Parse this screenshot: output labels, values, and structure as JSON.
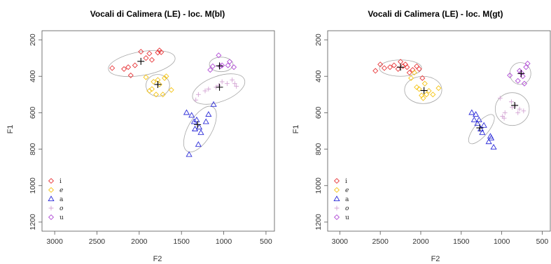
{
  "chart_data": [
    {
      "type": "scatter",
      "title": "Vocali di Calimera (LE) - loc. M(bl)",
      "xlabel": "F2",
      "ylabel": "F1",
      "xlim": [
        3150,
        400
      ],
      "ylim": [
        1250,
        150
      ],
      "x_reversed": true,
      "y_reversed": true,
      "xticks": [
        3000,
        2500,
        2000,
        1500,
        1000,
        500
      ],
      "yticks": [
        200,
        400,
        600,
        800,
        1000,
        1200
      ],
      "legend": {
        "position": "bottom-left",
        "entries": [
          "i",
          "e",
          "a",
          "o",
          "u"
        ]
      },
      "series": [
        {
          "name": "i",
          "marker": "diamond",
          "color": "#e8383b",
          "points": [
            [
              2320,
              355
            ],
            [
              2180,
              360
            ],
            [
              2130,
              350
            ],
            [
              2100,
              395
            ],
            [
              2050,
              340
            ],
            [
              1980,
              265
            ],
            [
              1920,
              300
            ],
            [
              1880,
              275
            ],
            [
              1850,
              310
            ],
            [
              1780,
              270
            ],
            [
              1760,
              258
            ],
            [
              1740,
              268
            ]
          ],
          "mean": [
            1980,
            318
          ],
          "ellipse": {
            "center": [
              1970,
              330
            ],
            "width_f2": 800,
            "height_f1": 130,
            "angle_deg": -10
          }
        },
        {
          "name": "e",
          "marker": "diamond",
          "color": "#f5c518",
          "points": [
            [
              1920,
              405
            ],
            [
              1880,
              480
            ],
            [
              1850,
              470
            ],
            [
              1830,
              430
            ],
            [
              1800,
              500
            ],
            [
              1780,
              420
            ],
            [
              1760,
              445
            ],
            [
              1720,
              500
            ],
            [
              1700,
              410
            ],
            [
              1680,
              400
            ],
            [
              1620,
              475
            ]
          ],
          "mean": [
            1780,
            445
          ],
          "ellipse": {
            "center": [
              1780,
              450
            ],
            "width_f2": 280,
            "height_f1": 120,
            "angle_deg": 0
          }
        },
        {
          "name": "a",
          "marker": "triangle",
          "color": "#2b2bd8",
          "points": [
            [
              1440,
              600
            ],
            [
              1410,
              830
            ],
            [
              1380,
              615
            ],
            [
              1350,
              650
            ],
            [
              1340,
              690
            ],
            [
              1320,
              640
            ],
            [
              1300,
              775
            ],
            [
              1290,
              680
            ],
            [
              1270,
              710
            ],
            [
              1210,
              650
            ],
            [
              1180,
              610
            ],
            [
              1120,
              555
            ]
          ],
          "mean": [
            1310,
            665
          ],
          "ellipse": {
            "center": [
              1280,
              690
            ],
            "width_f2": 280,
            "height_f1": 280,
            "angle_deg": 30
          }
        },
        {
          "name": "o",
          "marker": "plus",
          "color": "#d3a3d3",
          "points": [
            [
              1330,
              530
            ],
            [
              1300,
              500
            ],
            [
              1220,
              480
            ],
            [
              1180,
              470
            ],
            [
              1090,
              460
            ],
            [
              1060,
              450
            ],
            [
              1020,
              430
            ],
            [
              960,
              440
            ],
            [
              900,
              420
            ],
            [
              870,
              440
            ],
            [
              850,
              455
            ]
          ],
          "mean": [
            1050,
            460
          ],
          "ellipse": {
            "center": [
              1060,
              470
            ],
            "width_f2": 650,
            "height_f1": 140,
            "angle_deg": -20
          }
        },
        {
          "name": "u",
          "marker": "diamond",
          "color": "#b14cd6",
          "points": [
            [
              1160,
              365
            ],
            [
              1130,
              345
            ],
            [
              1060,
              285
            ],
            [
              1040,
              345
            ],
            [
              1020,
              340
            ],
            [
              950,
              340
            ],
            [
              930,
              320
            ],
            [
              880,
              350
            ]
          ],
          "mean": [
            1050,
            343
          ],
          "ellipse": {
            "center": [
              1030,
              335
            ],
            "width_f2": 280,
            "height_f1": 80,
            "angle_deg": 0
          }
        }
      ]
    },
    {
      "type": "scatter",
      "title": "Vocali di Calimera (LE) - loc. M(gt)",
      "xlabel": "F2",
      "ylabel": "F1",
      "xlim": [
        3150,
        400
      ],
      "ylim": [
        1250,
        150
      ],
      "x_reversed": true,
      "y_reversed": true,
      "xticks": [
        3000,
        2500,
        2000,
        1500,
        1000,
        500
      ],
      "yticks": [
        200,
        400,
        600,
        800,
        1000,
        1200
      ],
      "legend": {
        "position": "bottom-left",
        "entries": [
          "i",
          "e",
          "a",
          "o",
          "u"
        ]
      },
      "series": [
        {
          "name": "i",
          "marker": "diamond",
          "color": "#e8383b",
          "points": [
            [
              2560,
              370
            ],
            [
              2500,
              335
            ],
            [
              2450,
              355
            ],
            [
              2380,
              350
            ],
            [
              2330,
              340
            ],
            [
              2280,
              360
            ],
            [
              2250,
              320
            ],
            [
              2220,
              345
            ],
            [
              2190,
              335
            ],
            [
              2170,
              350
            ],
            [
              2140,
              380
            ],
            [
              2100,
              365
            ],
            [
              2050,
              345
            ],
            [
              2020,
              360
            ],
            [
              1980,
              410
            ]
          ],
          "mean": [
            2250,
            350
          ],
          "ellipse": {
            "center": [
              2250,
              355
            ],
            "width_f2": 520,
            "height_f1": 90,
            "angle_deg": 0
          }
        },
        {
          "name": "e",
          "marker": "diamond",
          "color": "#f5c518",
          "points": [
            [
              2120,
              410
            ],
            [
              2080,
              380
            ],
            [
              2050,
              460
            ],
            [
              2020,
              470
            ],
            [
              1990,
              505
            ],
            [
              1970,
              520
            ],
            [
              1950,
              440
            ],
            [
              1930,
              500
            ],
            [
              1900,
              480
            ],
            [
              1850,
              500
            ],
            [
              1780,
              465
            ]
          ],
          "mean": [
            1960,
            478
          ],
          "ellipse": {
            "center": [
              1970,
              475
            ],
            "width_f2": 460,
            "height_f1": 150,
            "angle_deg": 0
          }
        },
        {
          "name": "a",
          "marker": "triangle",
          "color": "#2b2bd8",
          "points": [
            [
              1370,
              600
            ],
            [
              1340,
              640
            ],
            [
              1320,
              610
            ],
            [
              1300,
              660
            ],
            [
              1280,
              640
            ],
            [
              1260,
              690
            ],
            [
              1240,
              710
            ],
            [
              1220,
              670
            ],
            [
              1160,
              760
            ],
            [
              1140,
              730
            ],
            [
              1130,
              740
            ],
            [
              1100,
              790
            ]
          ],
          "mean": [
            1270,
            683
          ],
          "ellipse": {
            "center": [
              1250,
              690
            ],
            "width_f2": 170,
            "height_f1": 200,
            "angle_deg": 40
          }
        },
        {
          "name": "o",
          "marker": "plus",
          "color": "#d3a3d3",
          "points": [
            [
              1020,
              520
            ],
            [
              990,
              620
            ],
            [
              970,
              630
            ],
            [
              960,
              600
            ],
            [
              880,
              540
            ],
            [
              870,
              570
            ],
            [
              830,
              560
            ],
            [
              800,
              600
            ],
            [
              780,
              580
            ],
            [
              730,
              590
            ]
          ],
          "mean": [
            840,
            560
          ],
          "ellipse": {
            "center": [
              870,
              580
            ],
            "width_f2": 420,
            "height_f1": 180,
            "angle_deg": 0
          }
        },
        {
          "name": "u",
          "marker": "diamond",
          "color": "#b14cd6",
          "points": [
            [
              900,
              395
            ],
            [
              800,
              425
            ],
            [
              780,
              370
            ],
            [
              760,
              380
            ],
            [
              740,
              400
            ],
            [
              720,
              440
            ],
            [
              700,
              350
            ],
            [
              680,
              330
            ]
          ],
          "mean": [
            760,
            385
          ],
          "ellipse": {
            "center": [
              770,
              385
            ],
            "width_f2": 260,
            "height_f1": 120,
            "angle_deg": 0
          }
        }
      ]
    }
  ]
}
